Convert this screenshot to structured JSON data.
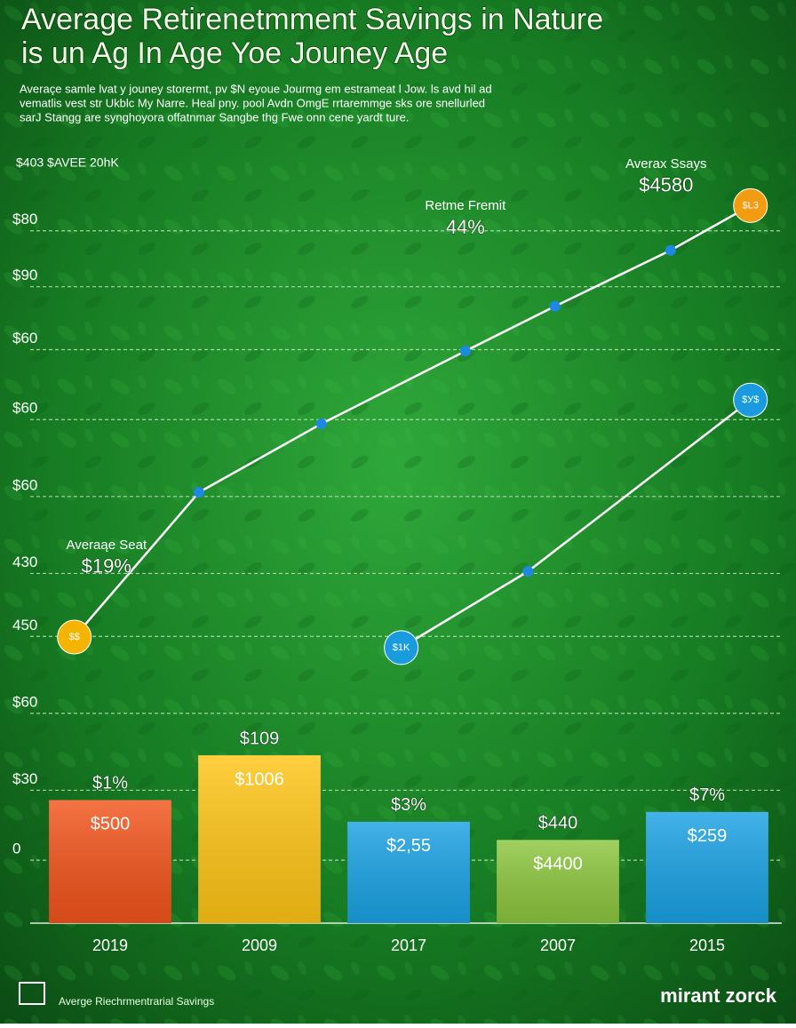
{
  "chart_data": {
    "type": "bar_line",
    "title": [
      "Average Retirenetmment Savings in Nature",
      "is un Ag In Age Yoe Jouney Age"
    ],
    "subtitle": [
      "Averaçe samle lvat y jouney storermt, pv $N eyoue Jourmg em estrameat l Jow. ls avd hil ad",
      "vematlis vest str Ukblc My Narre. Heal pny. pool Avdn OmgE rrtaremmge sks ore snellurled",
      "sarJ Stangg are synghoyora offatnmar Sangbe thg Fwe onn cene yardt ture."
    ],
    "header_note": "$403   $AVEE 20hK",
    "categories": [
      "2019",
      "2009",
      "2017",
      "2007",
      "2015"
    ],
    "values": [
      8.6,
      15,
      5.5,
      2.9,
      6.9
    ],
    "value_labels": [
      "$1%",
      "$109",
      "$3%",
      "$440",
      "$7%"
    ],
    "inner_labels": [
      "$500",
      "$1006",
      "$2,55",
      "$4400",
      "$259"
    ],
    "bar_colors": [
      "#f2541b",
      "#ffc516",
      "#1aa2e4",
      "#8cc63e",
      "#1aa2e4"
    ],
    "series": [
      {
        "x": [
          5.2,
          21.9,
          38.3,
          57.6,
          69.6,
          85.1,
          95.8
        ],
        "values": [
          31.9,
          52.6,
          62.4,
          72.8,
          79.2,
          87.2,
          93.6
        ],
        "color": "#ffffff",
        "dot_color": "#1e88e5",
        "start_color": "#f5b400",
        "end_color": "#f39c12",
        "endpoint_labels": [
          "$$",
          "$L3"
        ]
      },
      {
        "x": [
          49,
          66,
          95.8
        ],
        "values": [
          30.4,
          41.3,
          65.8
        ],
        "color": "#ffffff",
        "dot_color": "#1e88e5",
        "start_color": "#1a9be0",
        "end_color": "#1a9be0",
        "endpoint_labels": [
          "$1K",
          "$У$"
        ]
      }
    ],
    "annotations": [
      {
        "title": "Averaąe Seat",
        "value": "$19%",
        "x": 9.5,
        "y": 45
      },
      {
        "title": "Retme Fremit",
        "value": "44%",
        "x": 57.6,
        "y": 93.5
      },
      {
        "title": "Averax Ssays",
        "value": "$4580",
        "x": 84.5,
        "y": 99.5
      }
    ],
    "xlim": [
      0,
      100
    ],
    "ylim": [
      -9,
      100
    ],
    "yticks": [
      0,
      {
        "value": 10,
        "label": "$30"
      },
      {
        "value": 21,
        "label": "$60"
      },
      {
        "value": 32,
        "label": "450"
      },
      {
        "value": 41,
        "label": "430"
      },
      {
        "value": 52,
        "label": "$60"
      },
      {
        "value": 63,
        "label": "$60"
      },
      {
        "value": 73,
        "label": "$60"
      },
      {
        "value": 82,
        "label": "$90"
      },
      {
        "value": 90,
        "label": "$80"
      }
    ],
    "grid": true,
    "footer_left": "Averge Riechrmentrarial Savings",
    "footer_right": "mirant zorck"
  }
}
